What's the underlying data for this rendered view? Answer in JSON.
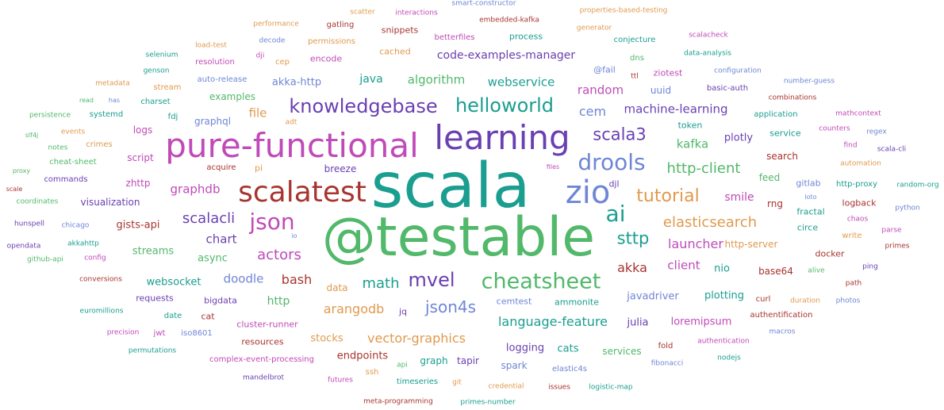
{
  "colors": {
    "teal": "#1a9e8f",
    "green": "#52b86a",
    "purple": "#6a3fb1",
    "magenta": "#c04ab8",
    "red": "#a8342f",
    "blue": "#6f86d6",
    "orange": "#e09a4f",
    "darkred": "#8b2a2a"
  },
  "words": [
    {
      "text": "scala",
      "color": "#1a9e8f",
      "weight": 72
    },
    {
      "text": "@testable",
      "color": "#52b86a",
      "weight": 64
    },
    {
      "text": "pure-functional",
      "color": "#c04ab8",
      "weight": 40
    },
    {
      "text": "learning",
      "color": "#6a3fb1",
      "weight": 40
    },
    {
      "text": "zio",
      "color": "#6f86d6",
      "weight": 38
    },
    {
      "text": "scalatest",
      "color": "#a8342f",
      "weight": 34
    },
    {
      "text": "drools",
      "color": "#6f86d6",
      "weight": 28
    },
    {
      "text": "cheatsheet",
      "color": "#52b86a",
      "weight": 27
    },
    {
      "text": "ai",
      "color": "#1a9e8f",
      "weight": 27
    },
    {
      "text": "json",
      "color": "#c04ab8",
      "weight": 27
    },
    {
      "text": "knowledgebase",
      "color": "#6a3fb1",
      "weight": 23
    },
    {
      "text": "helloworld",
      "color": "#1a9e8f",
      "weight": 23
    },
    {
      "text": "mvel",
      "color": "#6a3fb1",
      "weight": 23
    },
    {
      "text": "tutorial",
      "color": "#e09a4f",
      "weight": 22
    },
    {
      "text": "scala3",
      "color": "#6a3fb1",
      "weight": 20
    },
    {
      "text": "sttp",
      "color": "#1a9e8f",
      "weight": 20
    },
    {
      "text": "json4s",
      "color": "#6f86d6",
      "weight": 20
    },
    {
      "text": "elasticsearch",
      "color": "#e09a4f",
      "weight": 18
    },
    {
      "text": "http-client",
      "color": "#52b86a",
      "weight": 18
    },
    {
      "text": "scalacli",
      "color": "#6a3fb1",
      "weight": 18
    },
    {
      "text": "math",
      "color": "#1a9e8f",
      "weight": 18
    },
    {
      "text": "actors",
      "color": "#c04ab8",
      "weight": 18
    },
    {
      "text": "language-feature",
      "color": "#1a9e8f",
      "weight": 16
    },
    {
      "text": "launcher",
      "color": "#c04ab8",
      "weight": 16
    },
    {
      "text": "arangodb",
      "color": "#e09a4f",
      "weight": 16
    },
    {
      "text": "vector-graphics",
      "color": "#e09a4f",
      "weight": 16
    },
    {
      "text": "bash",
      "color": "#a8342f",
      "weight": 16
    },
    {
      "text": "akka",
      "color": "#a8342f",
      "weight": 16
    },
    {
      "text": "machine-learning",
      "color": "#6a3fb1",
      "weight": 15
    },
    {
      "text": "cem",
      "color": "#6f86d6",
      "weight": 15
    },
    {
      "text": "random",
      "color": "#c04ab8",
      "weight": 15
    },
    {
      "text": "algorithm",
      "color": "#52b86a",
      "weight": 15
    },
    {
      "text": "webservice",
      "color": "#1a9e8f",
      "weight": 15
    },
    {
      "text": "kafka",
      "color": "#52b86a",
      "weight": 15
    },
    {
      "text": "graphdb",
      "color": "#c04ab8",
      "weight": 15
    },
    {
      "text": "chart",
      "color": "#6a3fb1",
      "weight": 15
    },
    {
      "text": "doodle",
      "color": "#6f86d6",
      "weight": 15
    },
    {
      "text": "client",
      "color": "#c04ab8",
      "weight": 15
    },
    {
      "text": "smile",
      "color": "#c04ab8",
      "weight": 14
    },
    {
      "text": "file",
      "color": "#e09a4f",
      "weight": 15
    },
    {
      "text": "java",
      "color": "#1a9e8f",
      "weight": 14
    },
    {
      "text": "code-examples-manager",
      "color": "#6a3fb1",
      "weight": 13
    },
    {
      "text": "akka-http",
      "color": "#6f86d6",
      "weight": 13
    },
    {
      "text": "http",
      "color": "#52b86a",
      "weight": 14
    },
    {
      "text": "gists-api",
      "color": "#a8342f",
      "weight": 13
    },
    {
      "text": "streams",
      "color": "#52b86a",
      "weight": 13
    },
    {
      "text": "async",
      "color": "#52b86a",
      "weight": 13
    },
    {
      "text": "websocket",
      "color": "#1a9e8f",
      "weight": 13
    },
    {
      "text": "nio",
      "color": "#1a9e8f",
      "weight": 13
    },
    {
      "text": "plotly",
      "color": "#6a3fb1",
      "weight": 12
    },
    {
      "text": "javadriver",
      "color": "#6f86d6",
      "weight": 13
    },
    {
      "text": "plotting",
      "color": "#1a9e8f",
      "weight": 12
    },
    {
      "text": "logging",
      "color": "#6a3fb1",
      "weight": 12
    },
    {
      "text": "stocks",
      "color": "#e09a4f",
      "weight": 12
    },
    {
      "text": "endpoints",
      "color": "#a8342f",
      "weight": 12
    },
    {
      "text": "julia",
      "color": "#6a3fb1",
      "weight": 12
    },
    {
      "text": "loremipsum",
      "color": "#c04ab8",
      "weight": 12
    },
    {
      "text": "cats",
      "color": "#1a9e8f",
      "weight": 12
    },
    {
      "text": "spark",
      "color": "#6f86d6",
      "weight": 12
    },
    {
      "text": "tapir",
      "color": "#6a3fb1",
      "weight": 12
    },
    {
      "text": "graph",
      "color": "#1a9e8f",
      "weight": 12
    },
    {
      "text": "services",
      "color": "#52b86a",
      "weight": 12
    },
    {
      "text": "visualization",
      "color": "#6a3fb1",
      "weight": 12
    },
    {
      "text": "graphql",
      "color": "#6f86d6",
      "weight": 12
    },
    {
      "text": "examples",
      "color": "#52b86a",
      "weight": 12
    },
    {
      "text": "script",
      "color": "#c04ab8",
      "weight": 12
    },
    {
      "text": "logs",
      "color": "#c04ab8",
      "weight": 12
    },
    {
      "text": "zhttp",
      "color": "#c04ab8",
      "weight": 12
    },
    {
      "text": "breeze",
      "color": "#6a3fb1",
      "weight": 12
    },
    {
      "text": "djl",
      "color": "#6a3fb1",
      "weight": 11
    },
    {
      "text": "rng",
      "color": "#a8342f",
      "weight": 12
    },
    {
      "text": "search",
      "color": "#a8342f",
      "weight": 12
    },
    {
      "text": "feed",
      "color": "#52b86a",
      "weight": 12
    },
    {
      "text": "http-server",
      "color": "#e09a4f",
      "weight": 12
    },
    {
      "text": "base64",
      "color": "#a8342f",
      "weight": 12
    },
    {
      "text": "token",
      "color": "#1a9e8f",
      "weight": 11
    },
    {
      "text": "uuid",
      "color": "#6f86d6",
      "weight": 12
    },
    {
      "text": "ziotest",
      "color": "#c04ab8",
      "weight": 11
    },
    {
      "text": "bigdata",
      "color": "#6a3fb1",
      "weight": 11
    },
    {
      "text": "requests",
      "color": "#6a3fb1",
      "weight": 11
    },
    {
      "text": "cluster-runner",
      "color": "#c04ab8",
      "weight": 11
    },
    {
      "text": "resources",
      "color": "#a8342f",
      "weight": 11
    },
    {
      "text": "cemtest",
      "color": "#6f86d6",
      "weight": 11
    },
    {
      "text": "ammonite",
      "color": "#1a9e8f",
      "weight": 11
    },
    {
      "text": "data",
      "color": "#e09a4f",
      "weight": 12
    },
    {
      "text": "jq",
      "color": "#6a3fb1",
      "weight": 11
    },
    {
      "text": "cat",
      "color": "#a8342f",
      "weight": 11
    },
    {
      "text": "encode",
      "color": "#c04ab8",
      "weight": 11
    },
    {
      "text": "process",
      "color": "#1a9e8f",
      "weight": 11
    },
    {
      "text": "betterfiles",
      "color": "#c04ab8",
      "weight": 10
    },
    {
      "text": "gatling",
      "color": "#a8342f",
      "weight": 10
    },
    {
      "text": "snippets",
      "color": "#a8342f",
      "weight": 11
    },
    {
      "text": "cached",
      "color": "#e09a4f",
      "weight": 11
    },
    {
      "text": "resolution",
      "color": "#c04ab8",
      "weight": 10
    },
    {
      "text": "auto-release",
      "color": "#6f86d6",
      "weight": 10
    },
    {
      "text": "@fail",
      "color": "#6f86d6",
      "weight": 11
    },
    {
      "text": "dns",
      "color": "#52b86a",
      "weight": 10
    },
    {
      "text": "ttl",
      "color": "#a8342f",
      "weight": 9
    },
    {
      "text": "conjecture",
      "color": "#1a9e8f",
      "weight": 10
    },
    {
      "text": "configuration",
      "color": "#6f86d6",
      "weight": 9
    },
    {
      "text": "basic-auth",
      "color": "#6a3fb1",
      "weight": 10
    },
    {
      "text": "application",
      "color": "#1a9e8f",
      "weight": 10
    },
    {
      "text": "service",
      "color": "#1a9e8f",
      "weight": 11
    },
    {
      "text": "gitlab",
      "color": "#6f86d6",
      "weight": 11
    },
    {
      "text": "logback",
      "color": "#a8342f",
      "weight": 11
    },
    {
      "text": "fractal",
      "color": "#1a9e8f",
      "weight": 11
    },
    {
      "text": "circe",
      "color": "#1a9e8f",
      "weight": 11
    },
    {
      "text": "docker",
      "color": "#a8342f",
      "weight": 11
    },
    {
      "text": "curl",
      "color": "#a8342f",
      "weight": 10
    },
    {
      "text": "authentification",
      "color": "#a8342f",
      "weight": 10
    },
    {
      "text": "authentication",
      "color": "#c04ab8",
      "weight": 9
    },
    {
      "text": "fold",
      "color": "#a8342f",
      "weight": 10
    },
    {
      "text": "elastic4s",
      "color": "#6f86d6",
      "weight": 10
    },
    {
      "text": "fibonacci",
      "color": "#6f86d6",
      "weight": 9
    },
    {
      "text": "nodejs",
      "color": "#1a9e8f",
      "weight": 9
    },
    {
      "text": "logistic-map",
      "color": "#1a9e8f",
      "weight": 9
    },
    {
      "text": "issues",
      "color": "#a8342f",
      "weight": 9
    },
    {
      "text": "credential",
      "color": "#e09a4f",
      "weight": 9
    },
    {
      "text": "primes-number",
      "color": "#1a9e8f",
      "weight": 9
    },
    {
      "text": "meta-programming",
      "color": "#a8342f",
      "weight": 9
    },
    {
      "text": "git",
      "color": "#e09a4f",
      "weight": 9
    },
    {
      "text": "timeseries",
      "color": "#1a9e8f",
      "weight": 10
    },
    {
      "text": "api",
      "color": "#52b86a",
      "weight": 9
    },
    {
      "text": "ssh",
      "color": "#e09a4f",
      "weight": 10
    },
    {
      "text": "futures",
      "color": "#c04ab8",
      "weight": 9
    },
    {
      "text": "mandelbrot",
      "color": "#6a3fb1",
      "weight": 9
    },
    {
      "text": "complex-event-processing",
      "color": "#c04ab8",
      "weight": 10
    },
    {
      "text": "iso8601",
      "color": "#6f86d6",
      "weight": 10
    },
    {
      "text": "jwt",
      "color": "#c04ab8",
      "weight": 10
    },
    {
      "text": "date",
      "color": "#1a9e8f",
      "weight": 10
    },
    {
      "text": "permutations",
      "color": "#1a9e8f",
      "weight": 9
    },
    {
      "text": "precision",
      "color": "#c04ab8",
      "weight": 9
    },
    {
      "text": "euromillions",
      "color": "#1a9e8f",
      "weight": 9
    },
    {
      "text": "conversions",
      "color": "#a8342f",
      "weight": 9
    },
    {
      "text": "config",
      "color": "#c04ab8",
      "weight": 9
    },
    {
      "text": "github-api",
      "color": "#52b86a",
      "weight": 9
    },
    {
      "text": "akkahttp",
      "color": "#1a9e8f",
      "weight": 9
    },
    {
      "text": "opendata",
      "color": "#6a3fb1",
      "weight": 9
    },
    {
      "text": "io",
      "color": "#6f86d6",
      "weight": 8
    },
    {
      "text": "chicago",
      "color": "#6f86d6",
      "weight": 9
    },
    {
      "text": "hunspell",
      "color": "#6a3fb1",
      "weight": 9
    },
    {
      "text": "coordinates",
      "color": "#52b86a",
      "weight": 9
    },
    {
      "text": "scale",
      "color": "#a8342f",
      "weight": 8
    },
    {
      "text": "proxy",
      "color": "#52b86a",
      "weight": 8
    },
    {
      "text": "commands",
      "color": "#6a3fb1",
      "weight": 10
    },
    {
      "text": "cheat-sheet",
      "color": "#52b86a",
      "weight": 10
    },
    {
      "text": "acquire",
      "color": "#a8342f",
      "weight": 10
    },
    {
      "text": "pi",
      "color": "#e09a4f",
      "weight": 11
    },
    {
      "text": "notes",
      "color": "#52b86a",
      "weight": 9
    },
    {
      "text": "crimes",
      "color": "#e09a4f",
      "weight": 10
    },
    {
      "text": "slf4j",
      "color": "#52b86a",
      "weight": 8
    },
    {
      "text": "events",
      "color": "#e09a4f",
      "weight": 9
    },
    {
      "text": "persistence",
      "color": "#52b86a",
      "weight": 9
    },
    {
      "text": "systemd",
      "color": "#1a9e8f",
      "weight": 10
    },
    {
      "text": "fdj",
      "color": "#1a9e8f",
      "weight": 10
    },
    {
      "text": "adt",
      "color": "#e09a4f",
      "weight": 9
    },
    {
      "text": "read",
      "color": "#52b86a",
      "weight": 8
    },
    {
      "text": "has",
      "color": "#6f86d6",
      "weight": 8
    },
    {
      "text": "charset",
      "color": "#1a9e8f",
      "weight": 10
    },
    {
      "text": "metadata",
      "color": "#e09a4f",
      "weight": 9
    },
    {
      "text": "stream",
      "color": "#e09a4f",
      "weight": 10
    },
    {
      "text": "genson",
      "color": "#1a9e8f",
      "weight": 9
    },
    {
      "text": "selenium",
      "color": "#1a9e8f",
      "weight": 9
    },
    {
      "text": "load-test",
      "color": "#e09a4f",
      "weight": 9
    },
    {
      "text": "dji",
      "color": "#c04ab8",
      "weight": 9
    },
    {
      "text": "cep",
      "color": "#e09a4f",
      "weight": 10
    },
    {
      "text": "decode",
      "color": "#6f86d6",
      "weight": 9
    },
    {
      "text": "permissions",
      "color": "#e09a4f",
      "weight": 10
    },
    {
      "text": "performance",
      "color": "#e09a4f",
      "weight": 9
    },
    {
      "text": "scatter",
      "color": "#e09a4f",
      "weight": 9
    },
    {
      "text": "interactions",
      "color": "#c04ab8",
      "weight": 9
    },
    {
      "text": "smart-constructor",
      "color": "#6f86d6",
      "weight": 9
    },
    {
      "text": "embedded-kafka",
      "color": "#a8342f",
      "weight": 9
    },
    {
      "text": "properties-based-testing",
      "color": "#e09a4f",
      "weight": 9
    },
    {
      "text": "generator",
      "color": "#e09a4f",
      "weight": 9
    },
    {
      "text": "scalacheck",
      "color": "#c04ab8",
      "weight": 9
    },
    {
      "text": "data-analysis",
      "color": "#1a9e8f",
      "weight": 9
    },
    {
      "text": "number-guess",
      "color": "#6f86d6",
      "weight": 9
    },
    {
      "text": "combinations",
      "color": "#a8342f",
      "weight": 9
    },
    {
      "text": "mathcontext",
      "color": "#c04ab8",
      "weight": 9
    },
    {
      "text": "counters",
      "color": "#c04ab8",
      "weight": 9
    },
    {
      "text": "regex",
      "color": "#6f86d6",
      "weight": 9
    },
    {
      "text": "find",
      "color": "#c04ab8",
      "weight": 9
    },
    {
      "text": "scala-cli",
      "color": "#6a3fb1",
      "weight": 9
    },
    {
      "text": "automation",
      "color": "#e09a4f",
      "weight": 9
    },
    {
      "text": "files",
      "color": "#c04ab8",
      "weight": 8
    },
    {
      "text": "http-proxy",
      "color": "#1a9e8f",
      "weight": 10
    },
    {
      "text": "random-org",
      "color": "#1a9e8f",
      "weight": 9
    },
    {
      "text": "loto",
      "color": "#6f86d6",
      "weight": 8
    },
    {
      "text": "chaos",
      "color": "#c04ab8",
      "weight": 9
    },
    {
      "text": "python",
      "color": "#6f86d6",
      "weight": 9
    },
    {
      "text": "write",
      "color": "#e09a4f",
      "weight": 10
    },
    {
      "text": "parse",
      "color": "#c04ab8",
      "weight": 9
    },
    {
      "text": "primes",
      "color": "#a8342f",
      "weight": 9
    },
    {
      "text": "ping",
      "color": "#6a3fb1",
      "weight": 9
    },
    {
      "text": "alive",
      "color": "#52b86a",
      "weight": 9
    },
    {
      "text": "path",
      "color": "#a8342f",
      "weight": 9
    },
    {
      "text": "duration",
      "color": "#e09a4f",
      "weight": 9
    },
    {
      "text": "photos",
      "color": "#6f86d6",
      "weight": 9
    },
    {
      "text": "macros",
      "color": "#6f86d6",
      "weight": 9
    }
  ]
}
